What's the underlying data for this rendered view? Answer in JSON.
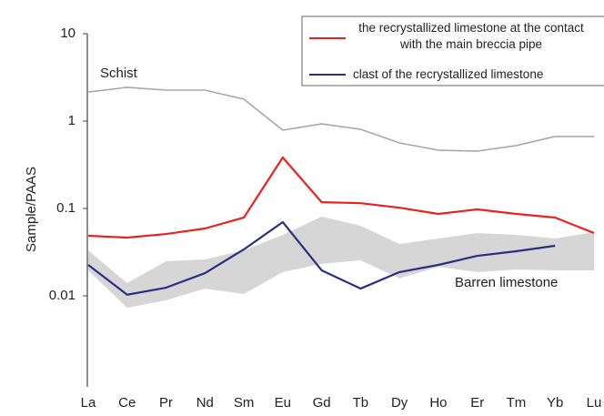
{
  "chart_data": {
    "type": "line",
    "y_label": "Sample/PAAS",
    "log_scale": true,
    "categories": [
      "La",
      "Ce",
      "Pr",
      "Nd",
      "Sm",
      "Eu",
      "Gd",
      "Tb",
      "Dy",
      "Ho",
      "Er",
      "Tm",
      "Yb",
      "Lu"
    ],
    "ylim": [
      0.001,
      10
    ],
    "yticks": [
      0.01,
      0.1,
      1,
      10
    ],
    "legend": "upper right",
    "series": [
      {
        "name": "the recrystallized limestone at the contact with the main breccia pipe",
        "color": "#e8231f",
        "values": [
          0.0487,
          0.0464,
          0.051,
          0.059,
          0.0787,
          0.383,
          0.118,
          0.115,
          0.102,
          0.0866,
          0.0977,
          0.0866,
          0.0787,
          0.0523
        ]
      },
      {
        "name": "clast of the recrystallized limestone",
        "color": "#2b2e83",
        "values": [
          0.0226,
          0.0103,
          0.0124,
          0.0182,
          0.034,
          0.0698,
          0.0196,
          0.0121,
          0.0187,
          0.0226,
          0.0287,
          0.0324,
          0.0374,
          null
        ]
      }
    ],
    "reference_line": {
      "name": "Schist",
      "color": "#a8a8a8",
      "values": [
        2.15,
        2.43,
        2.26,
        2.26,
        1.78,
        0.787,
        0.93,
        0.805,
        0.562,
        0.464,
        0.453,
        0.524,
        0.666,
        0.666
      ]
    },
    "band": {
      "name": "Barren limestone",
      "color": "#d6d6d6",
      "upper": [
        0.0332,
        0.014,
        0.0249,
        0.0261,
        0.0332,
        0.0499,
        0.0805,
        0.0634,
        0.0393,
        0.0453,
        0.0523,
        0.0499,
        0.0453,
        0.0536
      ],
      "lower": [
        0.0196,
        0.0073,
        0.0089,
        0.0121,
        0.0105,
        0.0187,
        0.0232,
        0.0255,
        0.0158,
        0.0215,
        0.0187,
        0.02,
        0.0196,
        0.0196
      ]
    }
  }
}
